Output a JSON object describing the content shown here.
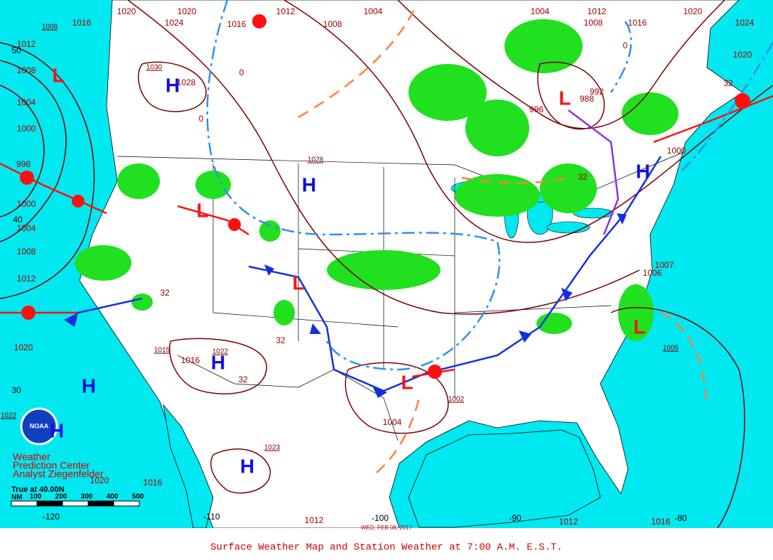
{
  "title": "Surface Weather Map and Station Weather at 7:00 A.M. E.S.T.",
  "date": "WED, FEB 08, 2017",
  "credits": [
    "Weather",
    "Prediction Center",
    "Analyst Ziegenfelder"
  ],
  "logo": "NOAA",
  "scale": {
    "label": "True at 40.00N",
    "unit": "NM",
    "ticks": [
      "100",
      "200",
      "300",
      "400",
      "500"
    ]
  },
  "pressure_centers": [
    "H",
    "H",
    "H",
    "H",
    "H",
    "H",
    "H",
    "L",
    "L",
    "L",
    "L",
    "L",
    "L"
  ],
  "isobar_labels": [
    "1020",
    "1020",
    "1012",
    "1004",
    "1004",
    "1012",
    "1020",
    "1024",
    "1016",
    "1008",
    "1008",
    "1016",
    "1024",
    "1016",
    "1012",
    "1008",
    "1004",
    "1000",
    "996",
    "1000",
    "1004",
    "1008",
    "1012",
    "1020",
    "1020",
    "1012",
    "1012",
    "1016",
    "1016",
    "1020",
    "996",
    "988",
    "992",
    "1000",
    "1007",
    "1016",
    "1004",
    "1028",
    "1006"
  ],
  "boxed_labels": [
    "1008",
    "1030",
    "1028",
    "1015",
    "1022",
    "1023",
    "1005",
    "1022",
    "1002"
  ],
  "grid_labels": [
    "50",
    "40",
    "30",
    "-120",
    "-110",
    "-100",
    "-90",
    "-80",
    "32",
    "0",
    "32",
    "32",
    "0",
    "0",
    "32",
    "32"
  ]
}
